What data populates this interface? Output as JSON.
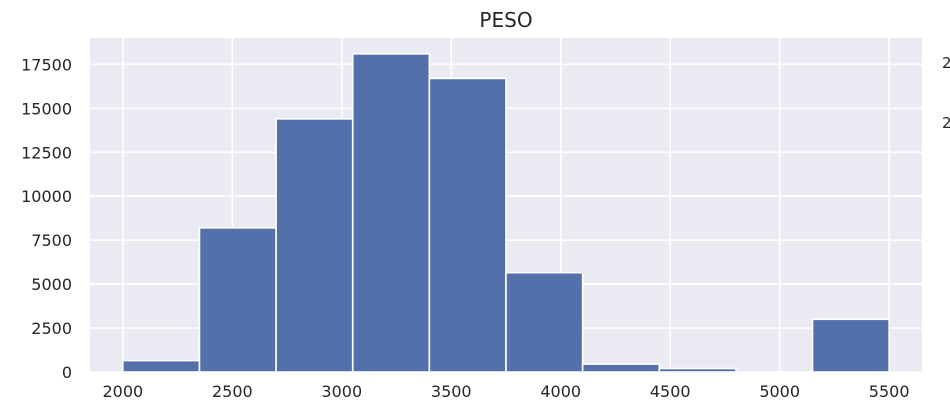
{
  "chart_data": {
    "type": "bar",
    "title": "PESO",
    "xlabel": "",
    "ylabel": "",
    "bin_edges": [
      2000,
      2350,
      2700,
      3050,
      3400,
      3750,
      4100,
      4450,
      4800,
      5150,
      5500
    ],
    "values": [
      650,
      8200,
      14400,
      18100,
      16700,
      5650,
      450,
      200,
      0,
      3000
    ],
    "xlim": [
      1850,
      5650
    ],
    "ylim": [
      0,
      19000
    ],
    "xticks": [
      2000,
      2500,
      3000,
      3500,
      4000,
      4500,
      5000,
      5500
    ],
    "yticks": [
      0,
      2500,
      5000,
      7500,
      10000,
      12500,
      15000,
      17500
    ],
    "grid": true,
    "bar_color": "#5470ab",
    "background_color": "#eaeaf2"
  }
}
